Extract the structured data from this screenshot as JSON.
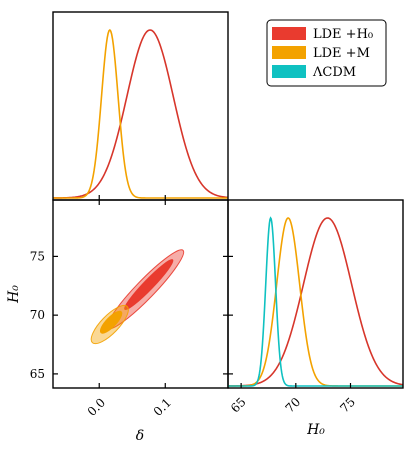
{
  "chart_data": {
    "type": "corner",
    "colors": {
      "red": "#d7362b",
      "red_fill": "#e93b2f",
      "orange": "#f3a200",
      "cyan": "#0fc1c1"
    },
    "legend": {
      "placement": "top-right",
      "entries": [
        {
          "label": "LDE +H₀",
          "color": "#e93b2f"
        },
        {
          "label": "LDE +M",
          "color": "#f3a200"
        },
        {
          "label": "ΛCDM",
          "color": "#0fc1c1"
        }
      ]
    },
    "axes": {
      "delta": {
        "label": "δ",
        "range": [
          -0.07,
          0.195
        ],
        "ticks": [
          0.0,
          0.1
        ],
        "tick_labels": [
          "0.0",
          "0.1"
        ]
      },
      "H0": {
        "label": "H₀",
        "range": [
          63.8,
          79.8
        ],
        "ticks": [
          65,
          70,
          75
        ],
        "tick_labels": [
          "65",
          "70",
          "75"
        ]
      }
    },
    "marginal_delta": {
      "series": [
        {
          "name": "LDE +H₀",
          "color": "#d7362b",
          "mean": 0.077,
          "sigma": 0.035
        },
        {
          "name": "LDE +M",
          "color": "#f3a200",
          "mean": 0.016,
          "sigma": 0.0125
        }
      ]
    },
    "marginal_H0": {
      "series": [
        {
          "name": "LDE +H₀",
          "color": "#d7362b",
          "mean": 72.9,
          "sigma": 2.2
        },
        {
          "name": "LDE +M",
          "color": "#f3a200",
          "mean": 69.3,
          "sigma": 1.05
        },
        {
          "name": "ΛCDM",
          "color": "#0fc1c1",
          "mean": 67.7,
          "sigma": 0.45
        }
      ]
    },
    "joint_delta_H0": {
      "series": [
        {
          "name": "LDE +H₀",
          "color": "#e93b2f",
          "outer": {
            "center": [
              0.07,
              72.2
            ],
            "a": 0.082,
            "b": 0.0044,
            "angle_deg": 46
          },
          "inner": {
            "center": [
              0.075,
              72.6
            ],
            "a": 0.052,
            "b": 0.0023,
            "angle_deg": 46
          }
        },
        {
          "name": "LDE +M",
          "color": "#f3a200",
          "outer": {
            "center": [
              0.016,
              69.2
            ],
            "a": 0.038,
            "b": 0.0042,
            "angle_deg": 46
          },
          "inner": {
            "center": [
              0.018,
              69.4
            ],
            "a": 0.022,
            "b": 0.0023,
            "angle_deg": 46
          }
        }
      ]
    }
  }
}
